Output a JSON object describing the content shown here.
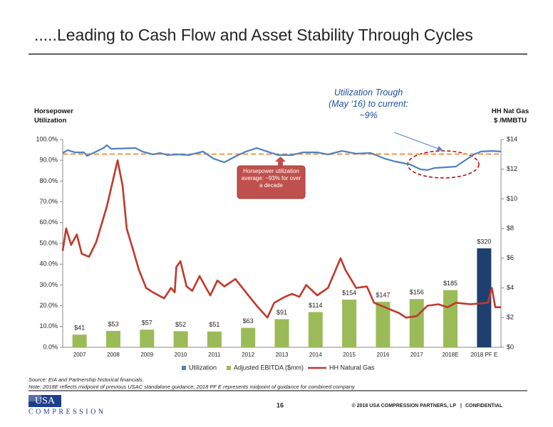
{
  "chart_data": {
    "type": "combo",
    "title": ".....Leading to Cash Flow and Asset Stability Through Cycles",
    "y_label": "Horsepower Utilization",
    "y2_label": "HH Nat Gas $ /MMBTU",
    "categories": [
      "2007",
      "2008",
      "2009",
      "2010",
      "2011",
      "2012",
      "2013",
      "2014",
      "2015",
      "2016",
      "2017",
      "2018E",
      "2018 PF E"
    ],
    "xlim": [
      2007,
      2018.5
    ],
    "ylim": [
      0,
      100
    ],
    "yticks": [
      {
        "value": 0,
        "label": "0.0%"
      },
      {
        "value": 10,
        "label": "10.0%"
      },
      {
        "value": 20,
        "label": "20.0%"
      },
      {
        "value": 30,
        "label": "30.0%"
      },
      {
        "value": 40,
        "label": "40.0%"
      },
      {
        "value": 50,
        "label": "50.0%"
      },
      {
        "value": 60,
        "label": "60.0%"
      },
      {
        "value": 70,
        "label": "70.0%"
      },
      {
        "value": 80,
        "label": "80.0%"
      },
      {
        "value": 90,
        "label": "90.0%"
      },
      {
        "value": 100,
        "label": "100.0%"
      }
    ],
    "y2lim": [
      0,
      14
    ],
    "y2ticks": [
      {
        "value": 0,
        "label": "$0"
      },
      {
        "value": 2,
        "label": "$2"
      },
      {
        "value": 4,
        "label": "$4"
      },
      {
        "value": 6,
        "label": "$6"
      },
      {
        "value": 8,
        "label": "$8"
      },
      {
        "value": 10,
        "label": "$10"
      },
      {
        "value": 12,
        "label": "$12"
      },
      {
        "value": 14,
        "label": "$14"
      }
    ],
    "y3lim": [
      0,
      672
    ],
    "series": [
      {
        "name": "Utilization",
        "type": "line",
        "color": "#4f81bd",
        "x": [
          2007.0,
          2007.13,
          2007.32,
          2007.56,
          2007.64,
          2007.88,
          2008.07,
          2008.16,
          2008.27,
          2008.91,
          2009.09,
          2009.37,
          2009.56,
          2009.75,
          2010.03,
          2010.31,
          2010.68,
          2010.96,
          2011.24,
          2011.53,
          2011.81,
          2012.09,
          2012.37,
          2012.65,
          2013.02,
          2013.3,
          2013.68,
          2013.96,
          2014.33,
          2014.7,
          2015.08,
          2015.45,
          2015.73,
          2016.11,
          2016.39,
          2016.57,
          2016.76,
          2017.04,
          2017.32,
          2017.51,
          2017.79,
          2017.98,
          2018.26,
          2018.5
        ],
        "values": [
          93.5,
          94.9,
          93.8,
          93.8,
          92.1,
          94.2,
          95.9,
          97.3,
          95.5,
          95.9,
          94.2,
          92.8,
          93.5,
          92.5,
          92.8,
          92.5,
          94.2,
          90.8,
          89.0,
          91.8,
          94.2,
          95.9,
          94.2,
          92.5,
          92.5,
          93.8,
          93.8,
          92.8,
          94.5,
          93.2,
          93.5,
          90.8,
          89.4,
          88.0,
          85.6,
          85.3,
          86.3,
          86.6,
          87.0,
          89.4,
          92.8,
          94.2,
          94.5,
          94.2
        ]
      },
      {
        "name": "Adjusted EBITDA ($mm)",
        "type": "bar",
        "axis": "y3",
        "color": "#9bbb59",
        "colors": [
          "#9bbb59",
          "#9bbb59",
          "#9bbb59",
          "#9bbb59",
          "#9bbb59",
          "#9bbb59",
          "#9bbb59",
          "#9bbb59",
          "#9bbb59",
          "#9bbb59",
          "#9bbb59",
          "#9bbb59",
          "#1f3f6e"
        ],
        "values": [
          41,
          53,
          57,
          52,
          51,
          63,
          91,
          114,
          154,
          147,
          156,
          185,
          320
        ],
        "value_labels": [
          "$41",
          "$53",
          "$57",
          "$52",
          "$51",
          "$63",
          "$91",
          "$114",
          "$154",
          "$147",
          "$156",
          "$185",
          "$320"
        ]
      },
      {
        "name": "HH Natural Gas",
        "type": "line",
        "axis": "y2",
        "color": "#c0392b",
        "x": [
          2007.0,
          2007.09,
          2007.22,
          2007.37,
          2007.5,
          2007.69,
          2007.88,
          2008.16,
          2008.44,
          2008.57,
          2008.68,
          2008.83,
          2009.0,
          2009.19,
          2009.37,
          2009.66,
          2009.84,
          2009.94,
          2009.98,
          2010.09,
          2010.25,
          2010.4,
          2010.59,
          2010.87,
          2011.06,
          2011.24,
          2011.53,
          2011.81,
          2012.09,
          2012.37,
          2012.55,
          2012.83,
          2013.02,
          2013.21,
          2013.39,
          2013.68,
          2013.96,
          2014.29,
          2014.42,
          2014.7,
          2014.98,
          2015.17,
          2015.45,
          2015.83,
          2016.01,
          2016.29,
          2016.57,
          2016.85,
          2017.1,
          2017.32,
          2017.7,
          2018.16,
          2018.26,
          2018.35,
          2018.5
        ],
        "values": [
          6.5,
          8.0,
          6.9,
          7.6,
          6.3,
          6.1,
          7.1,
          9.5,
          12.6,
          10.9,
          8.0,
          6.7,
          5.2,
          4.0,
          3.7,
          3.3,
          4.0,
          3.7,
          5.4,
          5.8,
          4.1,
          3.8,
          4.8,
          3.5,
          4.5,
          4.1,
          4.6,
          3.7,
          2.8,
          2.0,
          3.0,
          3.4,
          3.6,
          3.4,
          4.2,
          3.5,
          4.0,
          6.0,
          5.2,
          4.0,
          4.1,
          3.0,
          2.7,
          2.3,
          2.0,
          2.1,
          2.8,
          2.9,
          2.7,
          3.0,
          2.9,
          3.0,
          4.0,
          2.7,
          2.7
        ]
      }
    ],
    "reference_line": {
      "value": 93,
      "color": "#f79646"
    },
    "annotations": [
      "Horsepower utilization average: ~93% for over a decade",
      "Utilization Trough (May ‘16) to current: ~9%"
    ]
  },
  "footer": {
    "source": "Source: EIA and Partnership historical financials.",
    "note": "Note: 2018E reflects midpoint of previous USAC standalone guidance; 2018 PF E represents midpoint of guidance for combined company.",
    "page": "16",
    "copyright": "© 2018 USA COMPRESSION PARTNERS, LP",
    "confidential": "CONFIDENTIAL",
    "logo_top": "USA",
    "logo_bottom": "COMPRESSION"
  }
}
